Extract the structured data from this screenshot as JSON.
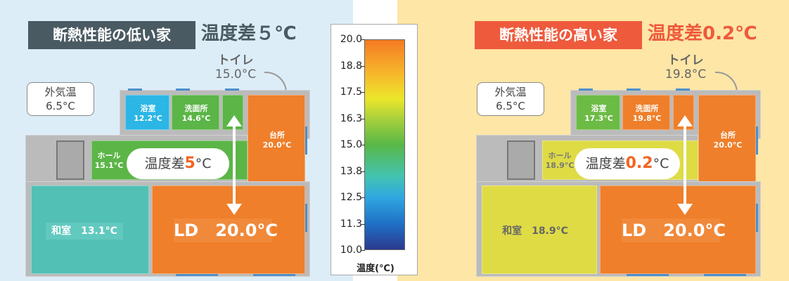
{
  "left": {
    "title": "断熱性能の低い家",
    "diff_title": "温度差５℃",
    "outside": {
      "label": "外気温",
      "temp": "6.5°C"
    },
    "toilet": {
      "label": "トイレ",
      "temp": "15.0°C"
    },
    "rooms": {
      "bath": {
        "name": "浴室",
        "temp": "12.2°C",
        "color": "#2bb6e6"
      },
      "washroom": {
        "name": "洗面所",
        "temp": "14.6°C",
        "color": "#5bb547"
      },
      "kitchen": {
        "name": "台所",
        "temp": "20.0°C",
        "color": "#ef7f2a"
      },
      "hall": {
        "name": "ホール",
        "temp": "15.1°C",
        "color": "#5bb547"
      },
      "washitsu": {
        "label": "和室　13.1°C",
        "color": "#52c0b4"
      },
      "ld": {
        "label": "LD　20.0°C",
        "color": "#ef7f2a"
      }
    },
    "pill": {
      "prefix": "温度差",
      "value": "5",
      "unit": "°C"
    }
  },
  "right": {
    "title": "断熱性能の高い家",
    "diff_title": "温度差0.2℃",
    "outside": {
      "label": "外気温",
      "temp": "6.5°C"
    },
    "toilet": {
      "label": "トイレ",
      "temp": "19.8°C"
    },
    "rooms": {
      "bath": {
        "name": "浴室",
        "temp": "17.3°C",
        "color": "#6cbb45"
      },
      "washroom": {
        "name": "洗面所",
        "temp": "19.8°C",
        "color": "#ef7f2a"
      },
      "kitchen": {
        "name": "台所",
        "temp": "20.0°C",
        "color": "#ef7f2a"
      },
      "hall": {
        "name": "ホール",
        "temp": "18.9°C",
        "color": "#dedb45"
      },
      "washitsu": {
        "label": "和室　18.9°C",
        "color": "#dedb45"
      },
      "ld": {
        "label": "LD　20.0°C",
        "color": "#ef7f2a"
      }
    },
    "pill": {
      "prefix": "温度差",
      "value": "0.2",
      "unit": "°C"
    }
  },
  "scale": {
    "ticks": [
      "20.0",
      "18.8",
      "17.5",
      "16.3",
      "15.0",
      "13.8",
      "12.5",
      "11.3",
      "10.0"
    ],
    "unit": "温度(℃)"
  },
  "colors": {
    "left_title_bg": "#4a5a62",
    "right_title_bg": "#ee5a3c",
    "left_diff_text": "#4a5a62",
    "right_diff_text": "#ee5a3c",
    "wall_gray": "#9a9a9a"
  }
}
